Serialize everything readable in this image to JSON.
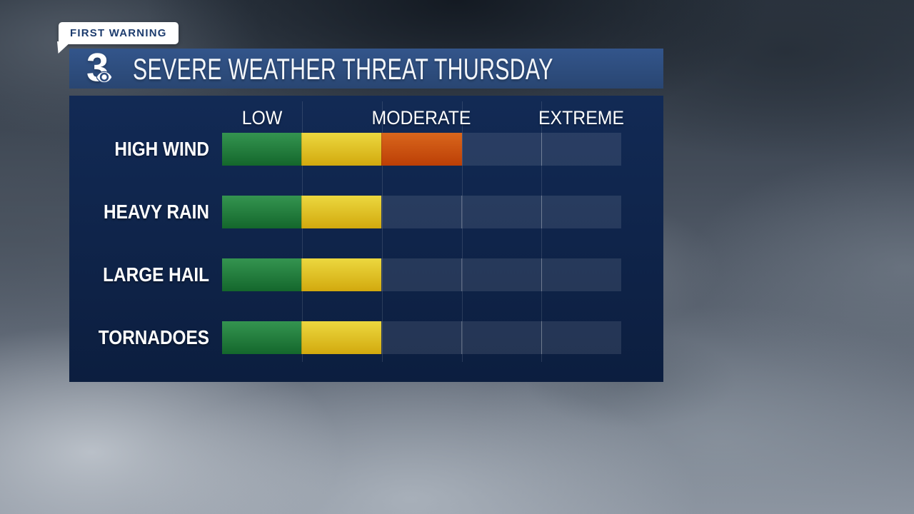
{
  "badge": {
    "label": "FIRST WARNING"
  },
  "header": {
    "station_number": "3",
    "logo_icon": "cbs-eye-icon",
    "title": "SEVERE WEATHER THREAT THURSDAY"
  },
  "chart_data": {
    "type": "heatmap",
    "title": "SEVERE WEATHER THREAT THURSDAY",
    "categories": [
      "HIGH WIND",
      "HEAVY RAIN",
      "LARGE HAIL",
      "TORNADOES"
    ],
    "values": [
      3,
      2,
      2,
      2
    ],
    "value_meaning": "number of filled threat segments out of 5 (LOW=1, MODERATE=3, EXTREME=5)",
    "segments_per_row": 5,
    "scale_labels": [
      "LOW",
      "MODERATE",
      "EXTREME"
    ],
    "scale_label_positions": [
      1,
      3,
      5
    ],
    "segment_colors": [
      "#2f8d49",
      "#e2c327",
      "#cc5512"
    ],
    "legend_position": "top",
    "grid": true,
    "colors": {
      "panel_background": "#0f2449",
      "header_bar": "#2e4d7f",
      "empty_cell": "#253a5e",
      "gridline": "rgba(255,255,255,0.25)",
      "text": "#ffffff",
      "badge_background": "#ffffff",
      "badge_text": "#1d3c6e"
    }
  }
}
